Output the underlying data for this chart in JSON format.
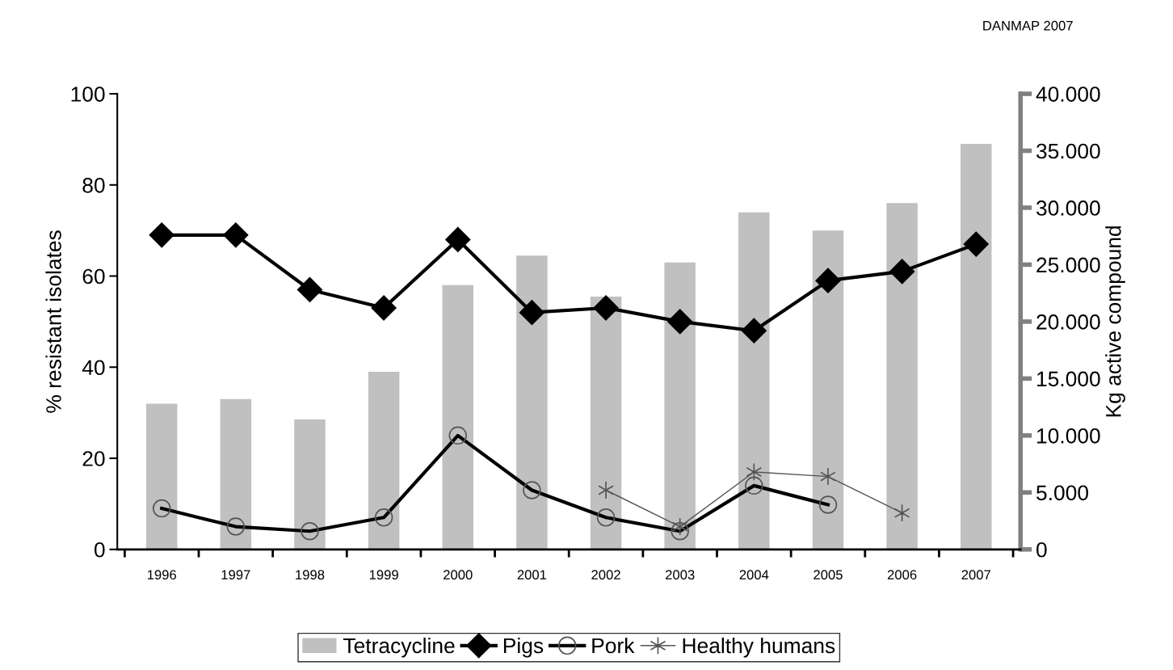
{
  "chart_data": {
    "type": "bar",
    "ylabel": "% resistant isolates",
    "y2label": "Kg active compound",
    "annotations": [
      "DANMAP 2007"
    ],
    "categories": [
      "1996",
      "1997",
      "1998",
      "1999",
      "2000",
      "2001",
      "2002",
      "2003",
      "2004",
      "2005",
      "2006",
      "2007"
    ],
    "series": [
      {
        "name": "Tetracycline",
        "axis": "y2",
        "color": "#c0c0c0",
        "values": [
          12800,
          13200,
          11400,
          15600,
          23200,
          25800,
          22200,
          25200,
          29600,
          28000,
          30400,
          35600
        ]
      },
      {
        "name": "Pigs",
        "type": "line",
        "color": "#000000",
        "marker": "diamond",
        "values": [
          69,
          69,
          57,
          53,
          68,
          52,
          53,
          50,
          48,
          59,
          61,
          67
        ]
      },
      {
        "name": "Pork",
        "type": "line",
        "color": "#000000",
        "marker": "circle",
        "values": [
          9,
          5,
          4,
          7,
          25,
          13,
          7,
          4,
          14,
          9.8,
          null,
          null
        ]
      },
      {
        "name": "Healthy humans",
        "type": "line",
        "color": "#555555",
        "marker": "cross",
        "values": [
          null,
          null,
          null,
          null,
          null,
          null,
          13,
          5,
          17,
          16,
          8,
          null
        ]
      }
    ],
    "ylim": [
      0,
      100
    ],
    "yticks": [
      0,
      20,
      40,
      60,
      80,
      100
    ],
    "y2lim": [
      0,
      40000
    ],
    "y2ticks": [
      {
        "value": 0,
        "label": "0"
      },
      {
        "value": 5000,
        "label": "5.000"
      },
      {
        "value": 10000,
        "label": "10.000"
      },
      {
        "value": 15000,
        "label": "15.000"
      },
      {
        "value": 20000,
        "label": "20.000"
      },
      {
        "value": 25000,
        "label": "25.000"
      },
      {
        "value": 30000,
        "label": "30.000"
      },
      {
        "value": 35000,
        "label": "35.000"
      },
      {
        "value": 40000,
        "label": "40.000"
      }
    ],
    "grid": false,
    "legend": "bottom"
  }
}
